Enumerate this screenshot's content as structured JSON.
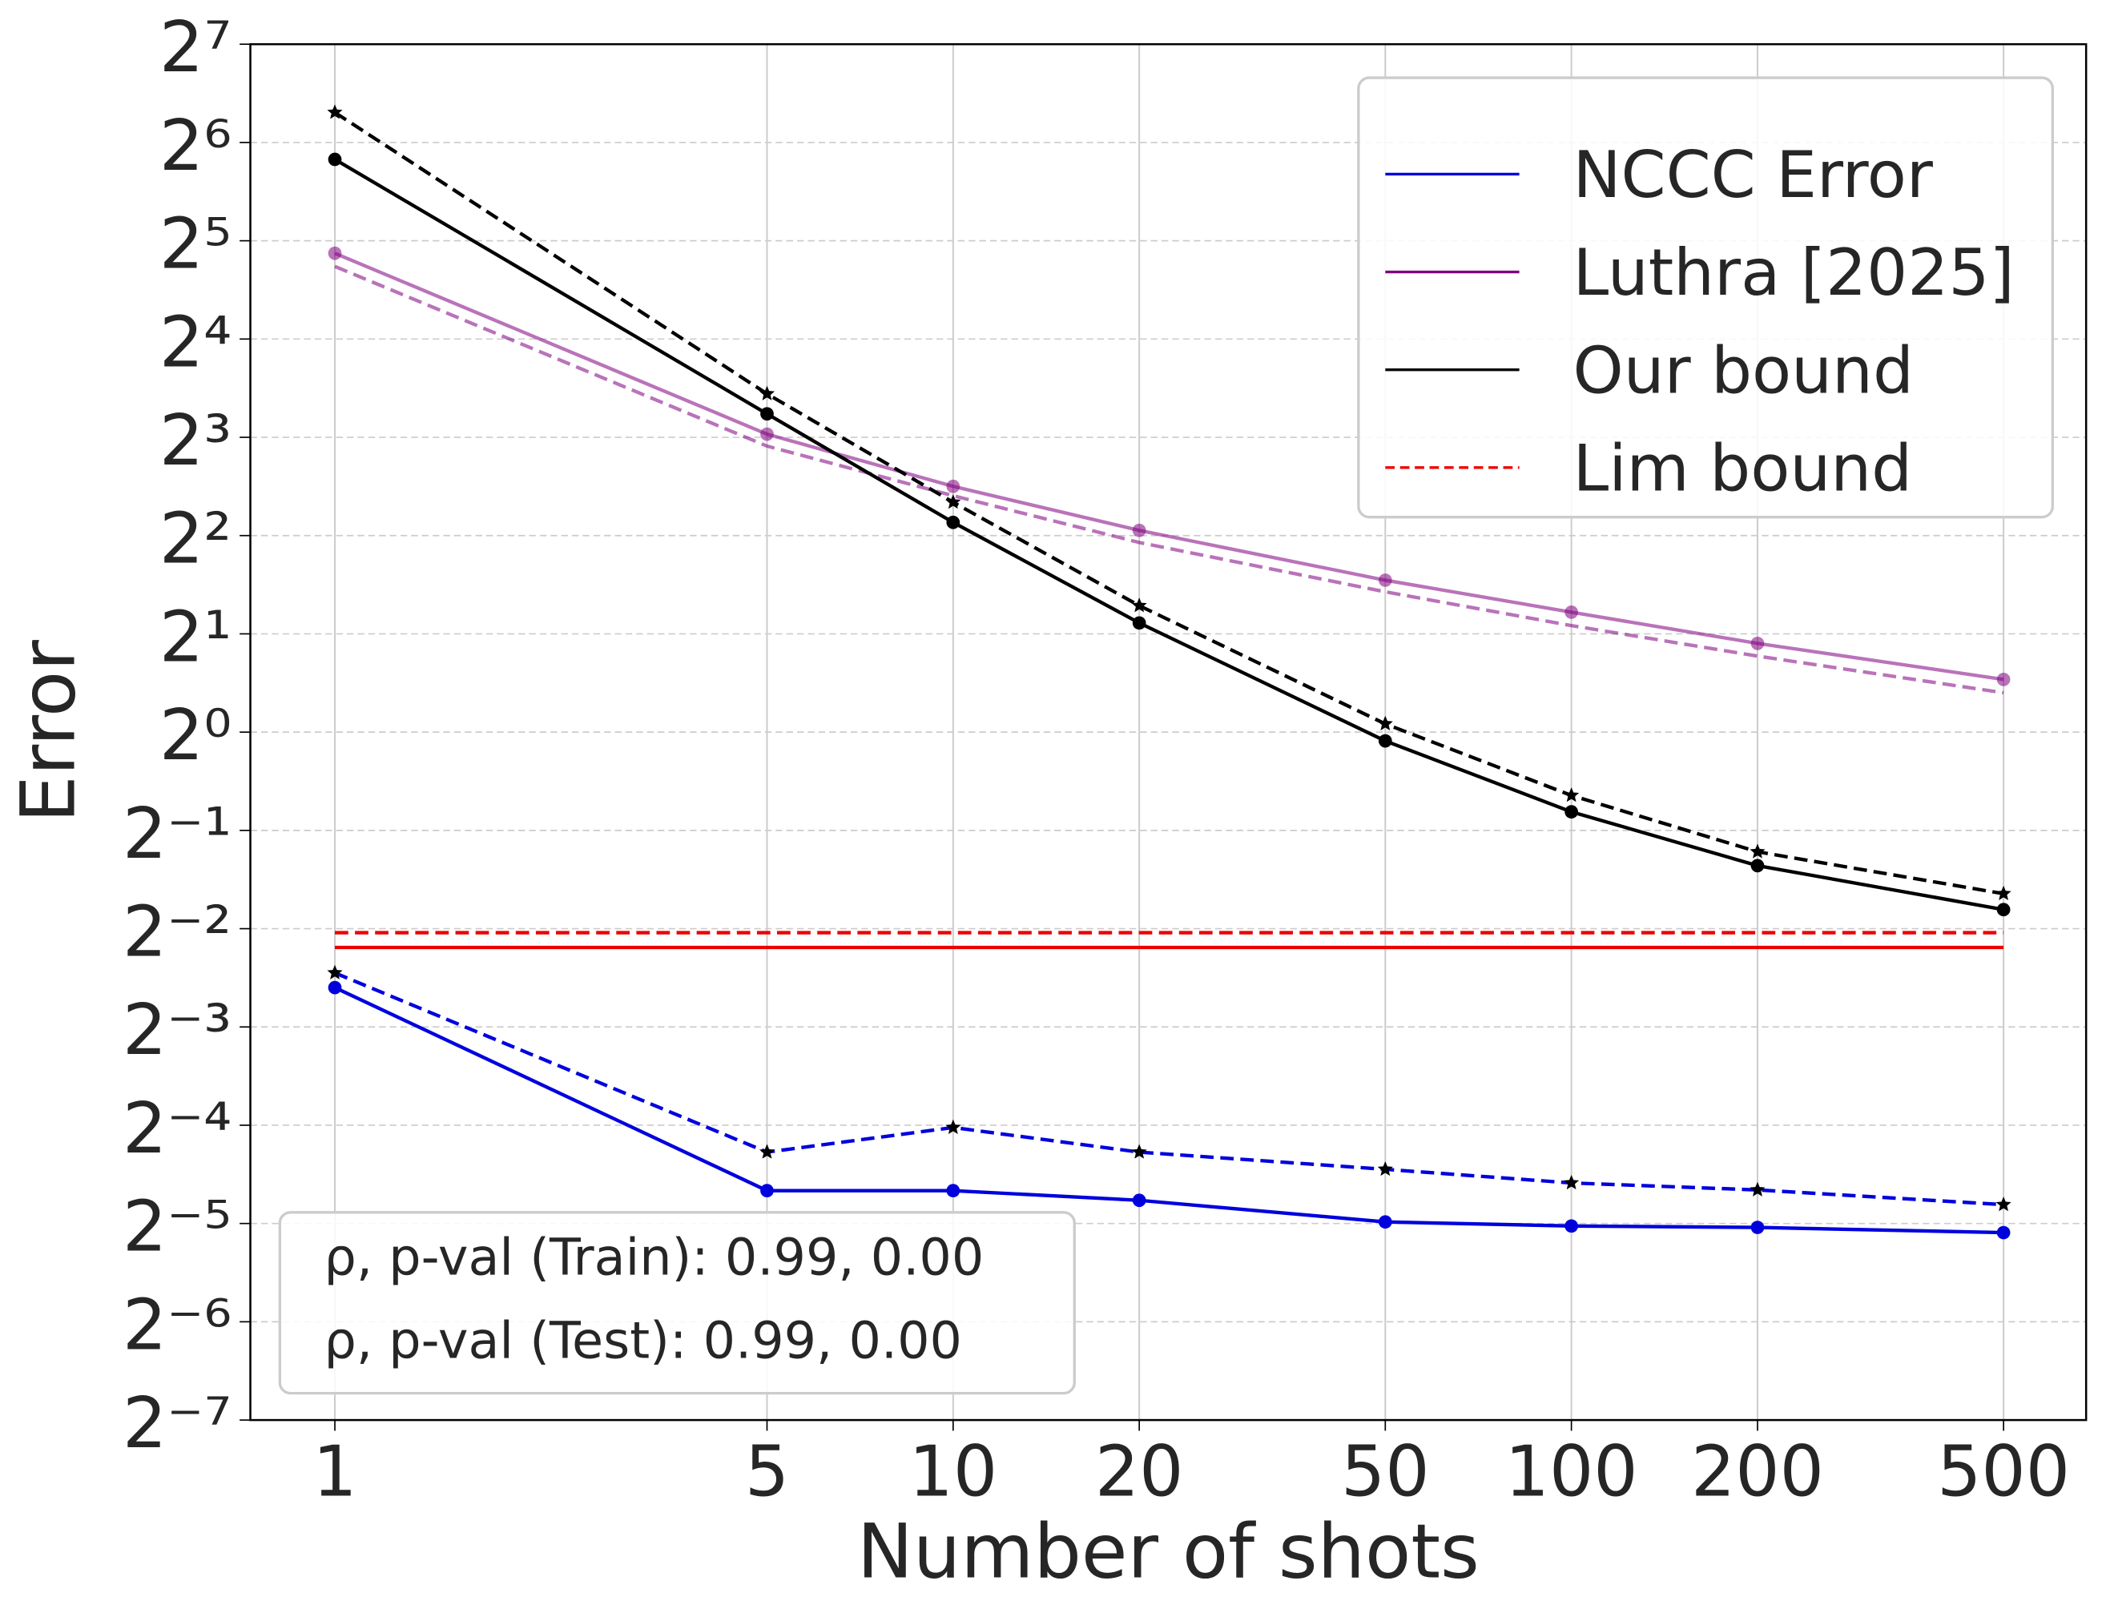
{
  "chart_data": {
    "type": "line",
    "x_label": "Number of shots",
    "y_label": "Error",
    "x": [
      1,
      5,
      10,
      20,
      50,
      100,
      200,
      500
    ],
    "xlim": [
      0.73,
      680
    ],
    "ylim": [
      0.0078125,
      128
    ],
    "x_log": true,
    "y_log_base": 2,
    "grid": true,
    "legend_loc": "upper right",
    "xticks": [
      1,
      5,
      10,
      20,
      50,
      100,
      200,
      500
    ],
    "yticks": [
      {
        "value": 0.0078125,
        "label": "2⁻⁷"
      },
      {
        "value": 0.015625,
        "label": "2⁻⁶"
      },
      {
        "value": 0.03125,
        "label": "2⁻⁵"
      },
      {
        "value": 0.0625,
        "label": "2⁻⁴"
      },
      {
        "value": 0.125,
        "label": "2⁻³"
      },
      {
        "value": 0.25,
        "label": "2⁻²"
      },
      {
        "value": 0.5,
        "label": "2⁻¹"
      },
      {
        "value": 1,
        "label": "2⁰"
      },
      {
        "value": 2,
        "label": "2¹"
      },
      {
        "value": 4,
        "label": "2²"
      },
      {
        "value": 8,
        "label": "2³"
      },
      {
        "value": 16,
        "label": "2⁴"
      },
      {
        "value": 32,
        "label": "2⁵"
      },
      {
        "value": 64,
        "label": "2⁶"
      },
      {
        "value": 128,
        "label": "2⁷"
      }
    ],
    "series": [
      {
        "name": "NCCC Error",
        "color": "#0000dd",
        "dashed": false,
        "marker": "circle",
        "values": [
          0.165,
          0.0394,
          0.0394,
          0.0368,
          0.0316,
          0.0307,
          0.0304,
          0.0293
        ]
      },
      {
        "color": "#0000dd",
        "dashed": true,
        "marker": "star",
        "values": [
          0.183,
          0.0517,
          0.0615,
          0.0517,
          0.0458,
          0.0416,
          0.0396,
          0.0357
        ]
      },
      {
        "name": "Luthra [2025]",
        "color": "#800080",
        "alpha": 0.55,
        "dashed": false,
        "marker": "circle",
        "values": [
          29.3,
          8.18,
          5.66,
          4.15,
          2.92,
          2.33,
          1.87,
          1.45
        ]
      },
      {
        "color": "#800080",
        "alpha": 0.55,
        "dashed": true,
        "values": [
          26.7,
          7.52,
          5.3,
          3.81,
          2.69,
          2.12,
          1.71,
          1.32
        ]
      },
      {
        "name": "Our bound",
        "color": "#000000",
        "dashed": false,
        "marker": "circle",
        "values": [
          56.8,
          9.44,
          4.39,
          2.16,
          0.94,
          0.57,
          0.39,
          0.286
        ]
      },
      {
        "color": "#000000",
        "dashed": true,
        "marker": "star",
        "values": [
          79.1,
          10.87,
          5.06,
          2.44,
          1.06,
          0.64,
          0.43,
          0.32
        ]
      },
      {
        "name": "Lim bound",
        "color": "#ee0000",
        "dashed": true,
        "values": [
          0.243,
          0.243,
          0.243,
          0.243,
          0.243,
          0.243,
          0.243,
          0.243
        ]
      },
      {
        "color": "#ee0000",
        "dashed": false,
        "values": [
          0.219,
          0.219,
          0.219,
          0.219,
          0.219,
          0.219,
          0.219,
          0.219
        ]
      }
    ],
    "annotations": [
      "ρ, p-val (Train): 0.99, 0.00",
      "ρ, p-val (Test): 0.99, 0.00"
    ]
  }
}
